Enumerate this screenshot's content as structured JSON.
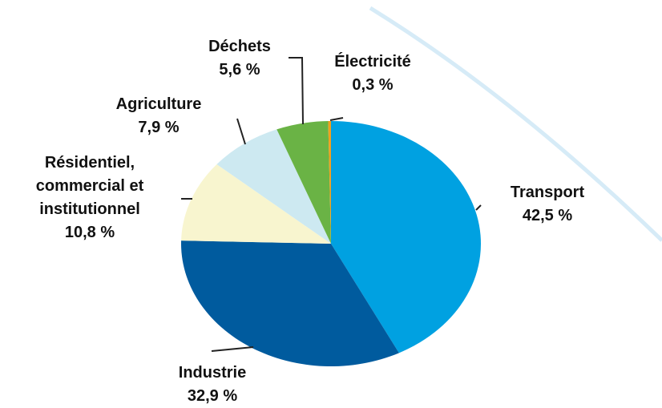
{
  "chart_data": {
    "type": "pie",
    "categories": [
      "Transport",
      "Industrie",
      "Résidentiel, commercial et institutionnel",
      "Agriculture",
      "Déchets",
      "Électricité"
    ],
    "values": [
      42.5,
      32.9,
      10.8,
      7.9,
      5.6,
      0.3
    ],
    "value_labels": [
      "42,5 %",
      "32,9 %",
      "10,8 %",
      "7,9 %",
      "5,6 %",
      "0,3 %"
    ],
    "colors": [
      "#00a1e1",
      "#005b9e",
      "#f8f5cf",
      "#cde9f1",
      "#6ab345",
      "#f2a01e"
    ]
  }
}
